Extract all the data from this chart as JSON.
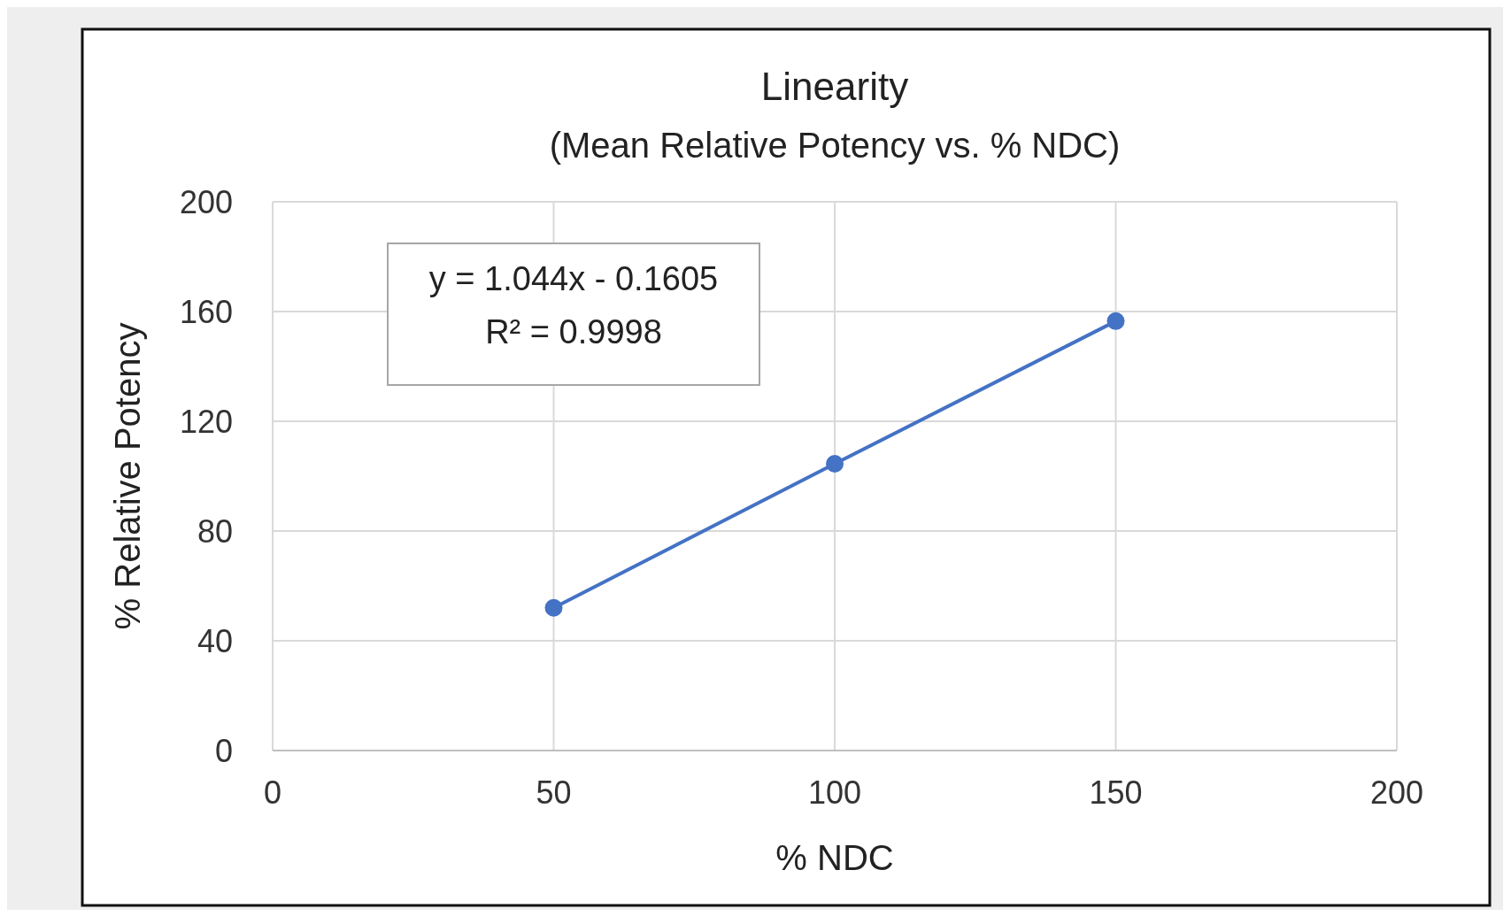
{
  "chart_data": {
    "type": "line",
    "title": "Linearity",
    "subtitle": "(Mean Relative Potency vs. % NDC)",
    "xlabel": "% NDC",
    "ylabel": "% Relative Potency",
    "x": [
      50,
      100,
      150
    ],
    "series": [
      {
        "color": "#4472c4",
        "values": [
          52,
          104.5,
          156.5
        ]
      }
    ],
    "xlim": [
      0,
      200
    ],
    "ylim": [
      0,
      200
    ],
    "xticks": [
      0,
      50,
      100,
      150,
      200
    ],
    "yticks": [
      0,
      40,
      80,
      120,
      160,
      200
    ],
    "grid": true,
    "marker": "circle",
    "line_style": "solid",
    "annotations": [
      "y = 1.044x - 0.1605",
      "R² = 0.9998"
    ]
  }
}
